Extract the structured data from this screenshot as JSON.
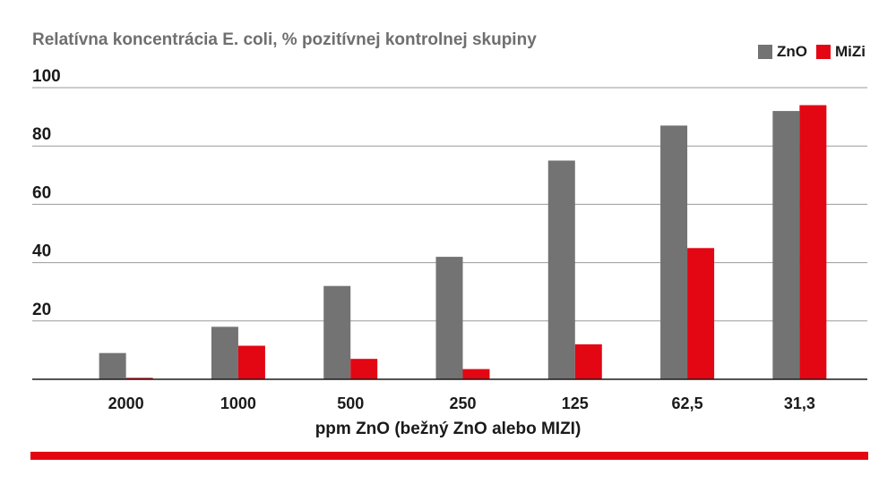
{
  "chart_data": {
    "type": "bar",
    "title": "Relatívna koncentrácia E. coli, % pozitívnej kontrolnej skupiny",
    "xlabel": "ppm ZnO (bežný ZnO alebo MIZI)",
    "ylabel": "",
    "ylim": [
      0,
      100
    ],
    "yticks": [
      20,
      40,
      60,
      80,
      100
    ],
    "grid": true,
    "legend_position": "top-right",
    "categories": [
      "2000",
      "1000",
      "500",
      "250",
      "125",
      "62,5",
      "31,3"
    ],
    "series": [
      {
        "name": "ZnO",
        "color": "#737373",
        "values": [
          9,
          18,
          32,
          42,
          75,
          87,
          92
        ]
      },
      {
        "name": "MiZi",
        "color": "#e30613",
        "values": [
          0.5,
          11.5,
          7,
          3.5,
          12,
          45,
          94
        ]
      }
    ]
  },
  "accent_color": "#e30613"
}
